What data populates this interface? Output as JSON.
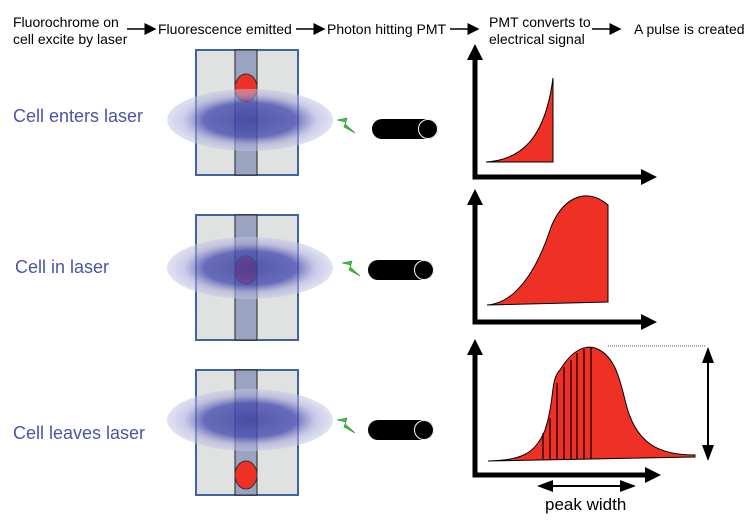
{
  "steps": [
    {
      "line1": "Fluorochrome on",
      "line2": "cell excite by laser"
    },
    {
      "line1": "Fluorescence emitted",
      "line2": ""
    },
    {
      "line1": "Photon hitting PMT",
      "line2": ""
    },
    {
      "line1": "PMT converts to",
      "line2": "electrical signal"
    },
    {
      "line1": "A pulse is created",
      "line2": ""
    }
  ],
  "rows": [
    {
      "label": "Cell enters laser"
    },
    {
      "label": "Cell in laser"
    },
    {
      "label": "Cell leaves laser"
    }
  ],
  "peak_width_label": "peak width",
  "colors": {
    "label": "#4a55a8",
    "pulse": "#ee3124",
    "cell": "#ee3124",
    "laser": "#3a3fa0",
    "flash": "#3cc43c"
  }
}
